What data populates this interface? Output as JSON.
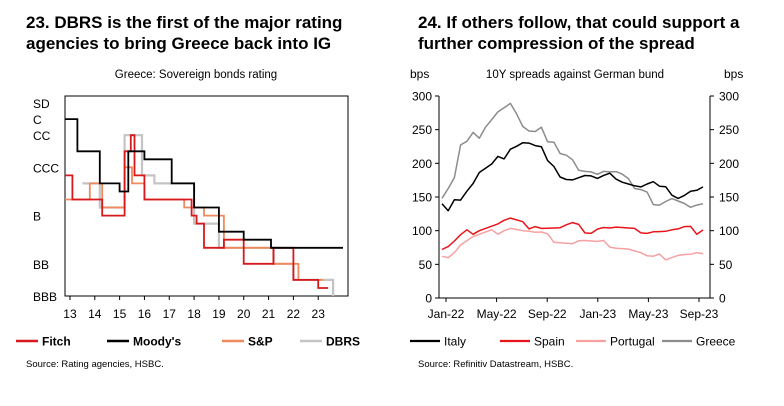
{
  "left": {
    "title_line1": "23. DBRS is the first of the major rating",
    "title_line2": "agencies to bring Greece back into IG",
    "source": "Source: Rating agencies, HSBC."
  },
  "right": {
    "title_line1": "24. If others follow, that could support a",
    "title_line2": "further compression of the spread",
    "source": "Source: Refinitiv Datastream, HSBC."
  },
  "colors": {
    "fitch": "#d7191c",
    "moodys": "#000000",
    "sp": "#f08a5d",
    "dbrs": "#c4c4c4",
    "italy": "#000000",
    "spain": "#e8141b",
    "portugal": "#f7a1a1",
    "greece": "#8c8c8c"
  },
  "chart_data": [
    {
      "type": "line",
      "title": "Greece: Sovereign bonds rating",
      "x_ticks": [
        "13",
        "14",
        "15",
        "16",
        "17",
        "18",
        "19",
        "20",
        "21",
        "22",
        "23"
      ],
      "x_range": [
        2012.8,
        2024.2
      ],
      "y_ticks": [
        "SD",
        "C",
        "CC",
        "CCC",
        "B",
        "BB",
        "BBB"
      ],
      "y_tick_levels": [
        0,
        1,
        2,
        4,
        7,
        10,
        12
      ],
      "series": [
        {
          "name": "Fitch",
          "points": [
            [
              2012.8,
              4.5
            ],
            [
              2013.1,
              4.5
            ],
            [
              2013.1,
              6
            ],
            [
              2014.3,
              6
            ],
            [
              2014.3,
              7
            ],
            [
              2015.2,
              7
            ],
            [
              2015.2,
              3
            ],
            [
              2015.45,
              3
            ],
            [
              2015.45,
              2
            ],
            [
              2015.6,
              2
            ],
            [
              2015.6,
              4.5
            ],
            [
              2016.0,
              4.5
            ],
            [
              2016.0,
              6
            ],
            [
              2017.9,
              6
            ],
            [
              2017.9,
              7
            ],
            [
              2018.1,
              7
            ],
            [
              2018.1,
              7.5
            ],
            [
              2018.4,
              7.5
            ],
            [
              2018.4,
              9
            ],
            [
              2019.2,
              9
            ],
            [
              2019.2,
              8.5
            ],
            [
              2020.0,
              8.5
            ],
            [
              2020.0,
              10
            ],
            [
              2021.2,
              10
            ],
            [
              2021.2,
              9
            ],
            [
              2022.0,
              9
            ],
            [
              2022.0,
              11
            ],
            [
              2023.0,
              11
            ],
            [
              2023.0,
              11.5
            ],
            [
              2023.4,
              11.5
            ]
          ]
        },
        {
          "name": "Moody's",
          "points": [
            [
              2012.8,
              1
            ],
            [
              2013.3,
              1
            ],
            [
              2013.3,
              3
            ],
            [
              2014.2,
              3
            ],
            [
              2014.2,
              5
            ],
            [
              2015.0,
              5
            ],
            [
              2015.0,
              5.5
            ],
            [
              2015.35,
              5.5
            ],
            [
              2015.35,
              3
            ],
            [
              2016.0,
              3
            ],
            [
              2016.0,
              3.5
            ],
            [
              2017.1,
              3.5
            ],
            [
              2017.1,
              5
            ],
            [
              2018.0,
              5
            ],
            [
              2018.0,
              6.5
            ],
            [
              2019.0,
              6.5
            ],
            [
              2019.0,
              8
            ],
            [
              2020.0,
              8
            ],
            [
              2020.0,
              8.5
            ],
            [
              2021.1,
              8.5
            ],
            [
              2021.1,
              9
            ],
            [
              2024.0,
              9
            ]
          ]
        },
        {
          "name": "S&P",
          "points": [
            [
              2012.8,
              6
            ],
            [
              2013.8,
              6
            ],
            [
              2013.8,
              5
            ],
            [
              2014.3,
              5
            ],
            [
              2014.3,
              6.5
            ],
            [
              2015.2,
              6.5
            ],
            [
              2015.2,
              4
            ],
            [
              2015.5,
              4
            ],
            [
              2015.5,
              5
            ],
            [
              2016.0,
              5
            ],
            [
              2016.0,
              6
            ],
            [
              2017.6,
              6
            ],
            [
              2017.6,
              6.5
            ],
            [
              2018.4,
              6.5
            ],
            [
              2018.4,
              7
            ],
            [
              2019.2,
              7
            ],
            [
              2019.2,
              9
            ],
            [
              2021.2,
              9
            ],
            [
              2021.2,
              10
            ],
            [
              2022.2,
              10
            ],
            [
              2022.2,
              11
            ],
            [
              2023.2,
              11
            ]
          ]
        },
        {
          "name": "DBRS",
          "points": [
            [
              2013.5,
              5
            ],
            [
              2014.2,
              5
            ],
            [
              2014.2,
              6.5
            ],
            [
              2015.2,
              6.5
            ],
            [
              2015.2,
              2
            ],
            [
              2015.9,
              2
            ],
            [
              2015.9,
              4.5
            ],
            [
              2016.4,
              4.5
            ],
            [
              2016.4,
              5
            ],
            [
              2018.0,
              5
            ],
            [
              2018.0,
              7.5
            ],
            [
              2019.0,
              7.5
            ],
            [
              2019.0,
              9
            ],
            [
              2021.2,
              9
            ],
            [
              2021.2,
              10
            ],
            [
              2022.0,
              10
            ],
            [
              2022.0,
              11
            ],
            [
              2023.6,
              11
            ],
            [
              2023.6,
              12
            ]
          ]
        }
      ]
    },
    {
      "type": "line",
      "title": "10Y spreads against German bund",
      "ylabel_left": "bps",
      "ylabel_right": "bps",
      "x_ticks": [
        "Jan-22",
        "May-22",
        "Sep-22",
        "Jan-23",
        "May-23",
        "Sep-23"
      ],
      "y_ticks": [
        0,
        50,
        100,
        150,
        200,
        250,
        300
      ],
      "ylim": [
        0,
        300
      ],
      "series": [
        {
          "name": "Italy",
          "values": [
            140,
            135,
            150,
            148,
            160,
            170,
            185,
            190,
            195,
            205,
            212,
            225,
            228,
            232,
            230,
            225,
            222,
            200,
            190,
            185,
            180,
            178,
            180,
            182,
            180,
            175,
            178,
            180,
            182,
            176,
            172,
            168,
            165,
            168,
            170,
            162,
            160,
            158,
            152,
            155,
            160,
            160,
            165
          ]
        },
        {
          "name": "Spain",
          "values": [
            72,
            75,
            82,
            90,
            96,
            100,
            104,
            106,
            108,
            110,
            114,
            116,
            112,
            108,
            108,
            110,
            106,
            105,
            104,
            103,
            106,
            108,
            104,
            102,
            100,
            105,
            106,
            104,
            104,
            102,
            100,
            98,
            102,
            100,
            101,
            100,
            99,
            100,
            100,
            102,
            101,
            100,
            101
          ]
        },
        {
          "name": "Portugal",
          "values": [
            62,
            64,
            70,
            80,
            85,
            90,
            92,
            94,
            96,
            100,
            104,
            106,
            103,
            100,
            98,
            95,
            94,
            90,
            88,
            86,
            84,
            82,
            85,
            84,
            82,
            80,
            80,
            81,
            78,
            76,
            74,
            70,
            66,
            60,
            58,
            60,
            62,
            64,
            66,
            66,
            65,
            66,
            66
          ]
        },
        {
          "name": "Greece",
          "values": [
            148,
            160,
            175,
            222,
            238,
            250,
            240,
            255,
            265,
            275,
            280,
            285,
            268,
            260,
            252,
            250,
            255,
            232,
            230,
            212,
            208,
            200,
            195,
            192,
            190,
            185,
            188,
            186,
            185,
            180,
            172,
            168,
            165,
            160,
            140,
            138,
            142,
            145,
            140,
            135,
            140,
            142,
            140
          ]
        }
      ]
    }
  ]
}
